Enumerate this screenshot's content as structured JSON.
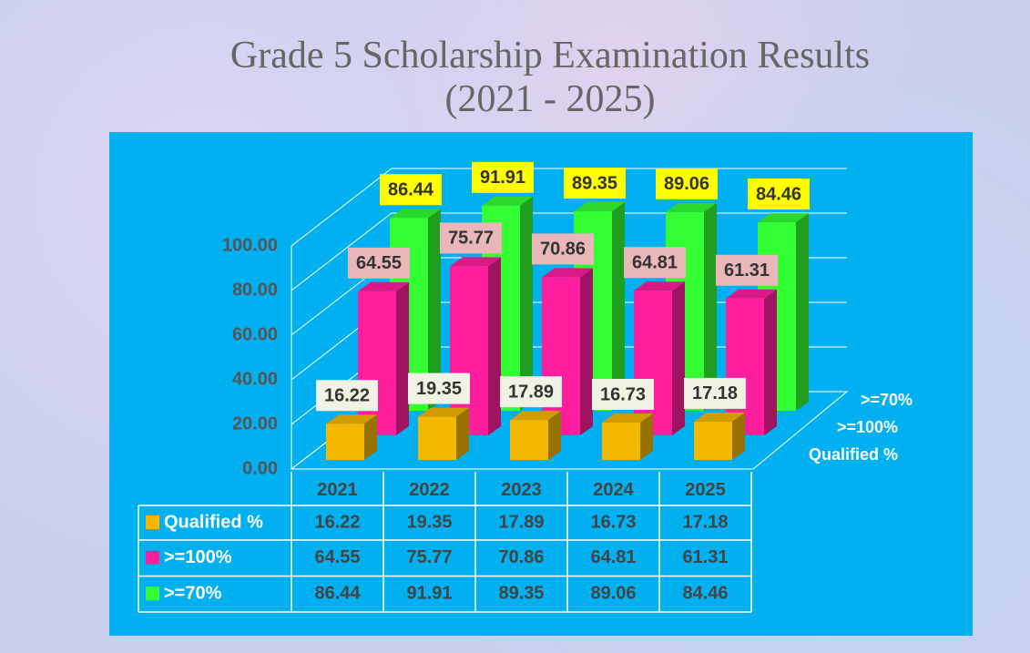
{
  "chart_data": {
    "type": "bar3d",
    "title": "Grade 5 Scholarship Examination Results",
    "subtitle": "(2021 - 2025)",
    "categories": [
      "2021",
      "2022",
      "2023",
      "2024",
      "2025"
    ],
    "series": [
      {
        "name": "Qualified %",
        "color": "#f5b800",
        "label_color": "#f2f2e4",
        "values": [
          16.22,
          19.35,
          17.89,
          16.73,
          17.18
        ]
      },
      {
        "name": ">=100%",
        "color": "#ff1f9e",
        "label_color": "#e9b6ba",
        "values": [
          64.55,
          75.77,
          70.86,
          64.81,
          61.31
        ]
      },
      {
        "name": ">=70%",
        "color": "#33ff33",
        "label_color": "#ffff00",
        "values": [
          86.44,
          91.91,
          89.35,
          89.06,
          84.46
        ]
      }
    ],
    "ylim": [
      0,
      100
    ],
    "yticks": [
      {
        "value": 0,
        "label": "0.00"
      },
      {
        "value": 20,
        "label": "20.00"
      },
      {
        "value": 40,
        "label": "40.00"
      },
      {
        "value": 60,
        "label": "60.00"
      },
      {
        "value": 80,
        "label": "80.00"
      },
      {
        "value": 100,
        "label": "100.00"
      }
    ],
    "grid": true,
    "data_table": true
  }
}
